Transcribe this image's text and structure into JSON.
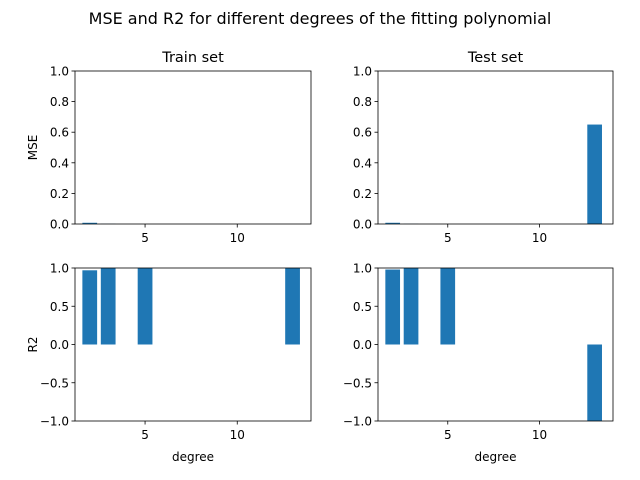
{
  "figure": {
    "title": "MSE and R2 for different degrees of the fitting polynomial"
  },
  "chart_data": [
    {
      "type": "bar",
      "title": "Train set",
      "xlabel": "",
      "ylabel": "MSE",
      "x": [
        2,
        3,
        5,
        13
      ],
      "values": [
        0.008,
        0.001,
        0.0,
        0.0
      ],
      "xlim": [
        1.2,
        14.0
      ],
      "ylim": [
        0,
        1.0
      ],
      "xticks": [
        5,
        10
      ],
      "yticks": [
        "0.0",
        "0.2",
        "0.4",
        "0.6",
        "0.8",
        "1.0"
      ],
      "ytick_values": [
        0,
        0.2,
        0.4,
        0.6,
        0.8,
        1.0
      ],
      "color": "#1f77b4"
    },
    {
      "type": "bar",
      "title": "Test set",
      "xlabel": "",
      "ylabel": "",
      "x": [
        2,
        3,
        5,
        13
      ],
      "values": [
        0.008,
        0.001,
        0.0,
        0.65
      ],
      "xlim": [
        1.2,
        14.0
      ],
      "ylim": [
        0,
        1.0
      ],
      "xticks": [
        5,
        10
      ],
      "yticks": [
        "0.0",
        "0.2",
        "0.4",
        "0.6",
        "0.8",
        "1.0"
      ],
      "ytick_values": [
        0,
        0.2,
        0.4,
        0.6,
        0.8,
        1.0
      ],
      "color": "#1f77b4"
    },
    {
      "type": "bar",
      "title": "",
      "xlabel": "degree",
      "ylabel": "R2",
      "x": [
        2,
        3,
        5,
        13
      ],
      "values": [
        0.97,
        1.0,
        1.0,
        1.0
      ],
      "xlim": [
        1.2,
        14.0
      ],
      "ylim": [
        -1.0,
        1.0
      ],
      "xticks": [
        5,
        10
      ],
      "yticks": [
        "−1.0",
        "−0.5",
        "0.0",
        "0.5",
        "1.0"
      ],
      "ytick_values": [
        -1.0,
        -0.5,
        0.0,
        0.5,
        1.0
      ],
      "color": "#1f77b4"
    },
    {
      "type": "bar",
      "title": "",
      "xlabel": "degree",
      "ylabel": "",
      "x": [
        2,
        3,
        5,
        13
      ],
      "values": [
        0.98,
        1.0,
        1.0,
        -1.2
      ],
      "xlim": [
        1.2,
        14.0
      ],
      "ylim": [
        -1.0,
        1.0
      ],
      "xticks": [
        5,
        10
      ],
      "yticks": [
        "−1.0",
        "−0.5",
        "0.0",
        "0.5",
        "1.0"
      ],
      "ytick_values": [
        -1.0,
        -0.5,
        0.0,
        0.5,
        1.0
      ],
      "color": "#1f77b4"
    }
  ]
}
